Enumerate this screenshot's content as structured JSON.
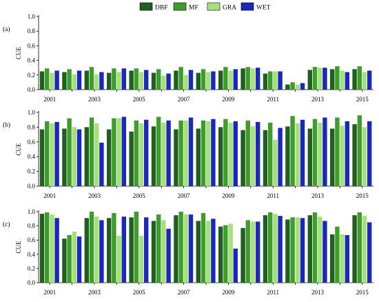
{
  "chart_data": {
    "type": "bar",
    "colors": {
      "DBF": "#1f5f1f",
      "MF": "#3e9c2a",
      "GRA": "#a6e07e",
      "WET": "#1c27bd"
    },
    "legend": {
      "placement": "top-center",
      "entries": [
        "DBF",
        "MF",
        "GRA",
        "WET"
      ]
    },
    "x_tick_labels": [
      "2001",
      "2003",
      "2005",
      "2007",
      "2009",
      "2011",
      "2013",
      "2015"
    ],
    "categories": [
      "2001",
      "2002",
      "2003",
      "2004",
      "2005",
      "2006",
      "2007",
      "2008",
      "2009",
      "2010",
      "2011",
      "2012",
      "2013",
      "2014",
      "2015"
    ],
    "grid": false,
    "panels": [
      {
        "label": "(a)",
        "ylabel": "CUE",
        "ylim": [
          0,
          1.0
        ],
        "yticks": [
          "0.0",
          "0.2",
          "0.4",
          "0.6",
          "0.8",
          "1.0"
        ],
        "series": [
          {
            "name": "DBF",
            "values": [
              0.25,
              0.24,
              0.26,
              0.23,
              0.26,
              0.23,
              0.26,
              0.23,
              0.26,
              0.29,
              0.22,
              0.07,
              0.27,
              0.28,
              0.28
            ]
          },
          {
            "name": "MF",
            "values": [
              0.29,
              0.28,
              0.31,
              0.29,
              0.29,
              0.28,
              0.31,
              0.28,
              0.31,
              0.31,
              0.25,
              0.1,
              0.31,
              0.32,
              0.32
            ]
          },
          {
            "name": "GRA",
            "values": [
              0.23,
              0.21,
              0.21,
              0.24,
              0.24,
              0.19,
              0.2,
              0.24,
              0.26,
              0.29,
              0.25,
              0.07,
              0.3,
              0.26,
              0.24
            ]
          },
          {
            "name": "WET",
            "values": [
              0.26,
              0.26,
              0.24,
              0.29,
              0.27,
              0.22,
              0.27,
              0.25,
              0.28,
              0.3,
              0.25,
              0.09,
              0.3,
              0.24,
              0.26
            ]
          }
        ]
      },
      {
        "label": "(b)",
        "ylabel": "CUE",
        "ylim": [
          0,
          1.0
        ],
        "yticks": [
          "0.0",
          "0.2",
          "0.4",
          "0.6",
          "0.8",
          "1.0"
        ],
        "series": [
          {
            "name": "DBF",
            "values": [
              0.77,
              0.78,
              0.8,
              0.77,
              0.74,
              0.81,
              0.77,
              0.78,
              0.8,
              0.76,
              0.76,
              0.81,
              0.78,
              0.78,
              0.84
            ]
          },
          {
            "name": "MF",
            "values": [
              0.88,
              0.92,
              0.93,
              0.92,
              0.89,
              0.94,
              0.89,
              0.89,
              0.91,
              0.89,
              0.86,
              0.95,
              0.91,
              0.93,
              0.96
            ]
          },
          {
            "name": "GRA",
            "values": [
              0.85,
              0.8,
              0.85,
              0.92,
              0.85,
              0.86,
              0.89,
              0.88,
              0.86,
              0.81,
              0.63,
              0.85,
              0.86,
              0.82,
              0.8
            ]
          },
          {
            "name": "WET",
            "values": [
              0.87,
              0.77,
              0.59,
              0.94,
              0.9,
              0.89,
              0.93,
              0.91,
              0.88,
              0.87,
              0.79,
              0.9,
              0.93,
              0.88,
              0.88
            ]
          }
        ]
      },
      {
        "label": "(c)",
        "ylabel": "CUE",
        "ylim": [
          0,
          1.0
        ],
        "yticks": [
          "0.0",
          "0.2",
          "0.4",
          "0.6",
          "0.8",
          "1.0"
        ],
        "series": [
          {
            "name": "DBF",
            "values": [
              0.97,
              0.62,
              0.91,
              0.91,
              0.92,
              0.87,
              0.95,
              0.87,
              0.79,
              0.77,
              0.95,
              0.89,
              0.95,
              0.68,
              0.95
            ]
          },
          {
            "name": "MF",
            "values": [
              0.99,
              0.67,
              1.0,
              0.98,
              1.0,
              0.96,
              1.0,
              0.98,
              0.81,
              0.88,
              0.99,
              0.92,
              0.99,
              0.79,
              0.99
            ]
          },
          {
            "name": "GRA",
            "values": [
              0.96,
              0.72,
              0.93,
              0.66,
              0.66,
              0.88,
              0.96,
              0.87,
              0.83,
              0.86,
              0.97,
              0.92,
              0.93,
              0.68,
              0.94
            ]
          },
          {
            "name": "WET",
            "values": [
              0.91,
              0.65,
              0.88,
              0.93,
              0.92,
              0.76,
              0.96,
              0.9,
              0.48,
              0.86,
              0.94,
              0.91,
              0.87,
              0.67,
              0.85
            ]
          }
        ]
      }
    ]
  }
}
